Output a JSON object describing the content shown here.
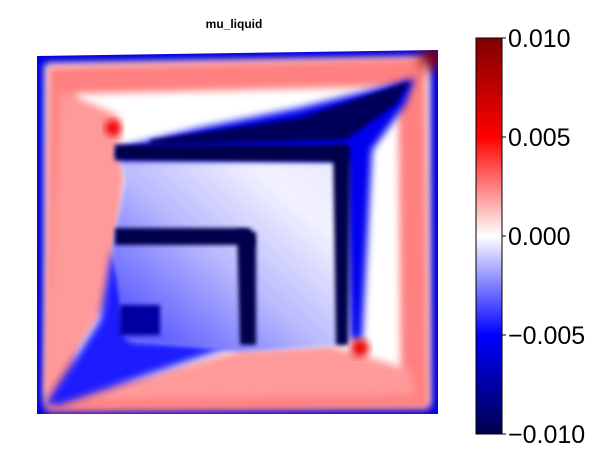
{
  "chart_data": {
    "type": "heatmap",
    "title": "mu_liquid",
    "xlabel": "",
    "ylabel": "",
    "axes_visible": false,
    "colormap": "seismic",
    "colormap_stops": [
      "#00004c",
      "#0000ff",
      "#ffffff",
      "#ff0000",
      "#7f0000"
    ],
    "colorbar": {
      "position": "right",
      "range": [
        -0.01,
        0.01
      ],
      "ticks": [
        0.01,
        0.005,
        0.0,
        -0.005,
        -0.01
      ],
      "tick_labels": [
        "0.010",
        "0.005",
        "0.000",
        "−0.005",
        "−0.010"
      ]
    },
    "field_description_values": {
      "outer_border": -0.006,
      "outer_band": 0.003,
      "inner_region": -0.002,
      "dark_channels": -0.01,
      "hotspots": 0.008,
      "corner_max": 0.01
    }
  }
}
